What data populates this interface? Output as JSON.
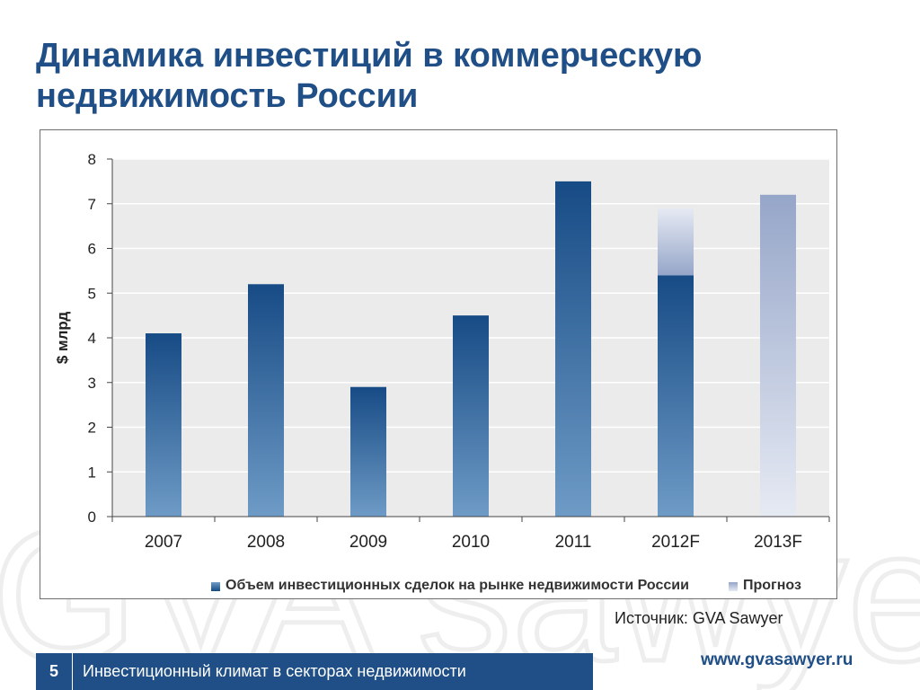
{
  "slide": {
    "title_line1": "Динамика инвестиций в коммерческую",
    "title_line2": "недвижимость России",
    "source": "Источник: GVA Sawyer",
    "page_number": "5",
    "footer_text": "Инвестиционный климат в  секторах недвижимости",
    "website": "www.gvasawyer.ru",
    "watermark_text": "GVA sawyer"
  },
  "colors": {
    "brand": "#1f4f86",
    "bar_dark": "#174b85",
    "bar_light": "#6e9bc6",
    "forecast_dark": "#96a6c9",
    "forecast_light": "#e6eaf3",
    "plot_bg": "#ebebeb"
  },
  "chart_data": {
    "type": "bar",
    "categories": [
      "2007",
      "2008",
      "2009",
      "2010",
      "2011",
      "2012F",
      "2013F"
    ],
    "ylabel": "$ млрд",
    "ylim": [
      0,
      8
    ],
    "yticks": [
      "0",
      "1",
      "2",
      "3",
      "4",
      "5",
      "6",
      "7",
      "8"
    ],
    "grid": true,
    "legend_position": "bottom",
    "series": [
      {
        "name": "Объем инвестиционных сделок на рынке недвижимости России",
        "values": [
          4.1,
          5.2,
          2.9,
          4.5,
          7.5,
          5.4,
          0
        ]
      },
      {
        "name": "Прогноз",
        "values": [
          0,
          0,
          0,
          0,
          0,
          1.5,
          7.2
        ]
      }
    ]
  }
}
